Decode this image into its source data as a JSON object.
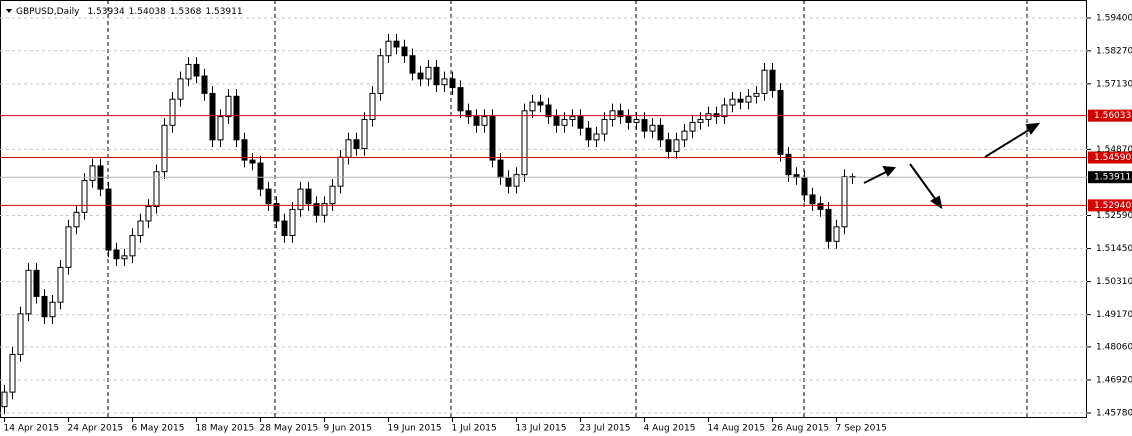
{
  "chart_data": {
    "type": "candlestick",
    "symbol": "GBPUSD,Daily",
    "quote": [
      1.53934,
      1.54038,
      1.5368,
      1.53911
    ],
    "categories": [
      "14 Apr 2015",
      null,
      null,
      null,
      null,
      null,
      null,
      null,
      "24 Apr 2015",
      null,
      null,
      null,
      null,
      null,
      null,
      null,
      "6 May 2015",
      null,
      null,
      null,
      null,
      null,
      null,
      null,
      "18 May 2015",
      null,
      null,
      null,
      null,
      null,
      null,
      null,
      "28 May 2015",
      null,
      null,
      null,
      null,
      null,
      null,
      null,
      "9 Jun 2015",
      null,
      null,
      null,
      null,
      null,
      null,
      null,
      "19 Jun 2015",
      null,
      null,
      null,
      null,
      null,
      null,
      null,
      "1 Jul 2015",
      null,
      null,
      null,
      null,
      null,
      null,
      null,
      "13 Jul 2015",
      null,
      null,
      null,
      null,
      null,
      null,
      null,
      "23 Jul 2015",
      null,
      null,
      null,
      null,
      null,
      null,
      null,
      "4 Aug 2015",
      null,
      null,
      null,
      null,
      null,
      null,
      null,
      "14 Aug 2015",
      null,
      null,
      null,
      null,
      null,
      null,
      null,
      "26 Aug 2015",
      null,
      null,
      null,
      null,
      null,
      null,
      null,
      "7 Sep 2015",
      null,
      null
    ],
    "open": [
      1.46,
      1.465,
      1.478,
      1.492,
      1.507,
      1.498,
      1.491,
      1.496,
      1.508,
      1.522,
      1.527,
      1.538,
      1.543,
      1.535,
      1.514,
      1.511,
      1.512,
      1.519,
      1.524,
      1.529,
      1.541,
      1.557,
      1.566,
      1.573,
      1.578,
      1.574,
      1.568,
      1.552,
      1.56,
      1.567,
      1.552,
      1.545,
      1.544,
      1.535,
      1.53,
      1.524,
      1.519,
      1.528,
      1.535,
      1.53,
      1.526,
      1.53,
      1.536,
      1.546,
      1.552,
      1.549,
      1.559,
      1.568,
      1.581,
      1.586,
      1.584,
      1.581,
      1.575,
      1.573,
      1.577,
      1.571,
      1.573,
      1.57,
      1.562,
      1.56,
      1.557,
      1.56,
      1.545,
      1.539,
      1.536,
      1.54,
      1.562,
      1.565,
      1.564,
      1.56,
      1.557,
      1.559,
      1.56,
      1.556,
      1.552,
      1.554,
      1.559,
      1.562,
      1.56,
      1.558,
      1.559,
      1.555,
      1.557,
      1.552,
      1.548,
      1.552,
      1.555,
      1.558,
      1.559,
      1.561,
      1.56,
      1.564,
      1.566,
      1.565,
      1.567,
      1.568,
      1.576,
      1.569,
      1.547,
      1.54,
      1.539,
      1.533,
      1.53,
      1.528,
      1.517,
      1.522,
      1.53934
    ],
    "high": [
      1.4675,
      1.4805,
      1.4945,
      1.5095,
      1.5095,
      1.5005,
      1.4985,
      1.5105,
      1.5245,
      1.5295,
      1.5405,
      1.5455,
      1.5455,
      1.5375,
      1.5165,
      1.5145,
      1.5215,
      1.5265,
      1.5315,
      1.5435,
      1.5595,
      1.5685,
      1.5755,
      1.5805,
      1.5805,
      1.5765,
      1.5705,
      1.5625,
      1.5695,
      1.5695,
      1.5545,
      1.5475,
      1.5465,
      1.5375,
      1.5325,
      1.5265,
      1.5305,
      1.5375,
      1.5375,
      1.5325,
      1.5325,
      1.5385,
      1.5485,
      1.5545,
      1.5545,
      1.5615,
      1.5705,
      1.5835,
      1.5885,
      1.5885,
      1.5865,
      1.5835,
      1.5775,
      1.5795,
      1.5795,
      1.5755,
      1.5755,
      1.5725,
      1.5645,
      1.5625,
      1.5625,
      1.5625,
      1.5475,
      1.5415,
      1.5425,
      1.5645,
      1.5675,
      1.5675,
      1.5665,
      1.5625,
      1.5615,
      1.5625,
      1.5625,
      1.5585,
      1.5565,
      1.5615,
      1.5645,
      1.5645,
      1.5625,
      1.5615,
      1.5615,
      1.5595,
      1.5595,
      1.5545,
      1.5545,
      1.5575,
      1.5605,
      1.5615,
      1.5635,
      1.5635,
      1.5665,
      1.5685,
      1.5685,
      1.5695,
      1.5705,
      1.5785,
      1.5785,
      1.5715,
      1.5495,
      1.5425,
      1.5415,
      1.5355,
      1.5325,
      1.5305,
      1.5245,
      1.5418,
      1.54038
    ],
    "low": [
      1.4575,
      1.4625,
      1.4755,
      1.4895,
      1.4955,
      1.4885,
      1.4885,
      1.4935,
      1.5055,
      1.5195,
      1.5245,
      1.5355,
      1.5325,
      1.5115,
      1.5085,
      1.5085,
      1.5095,
      1.5165,
      1.5215,
      1.5265,
      1.5385,
      1.5545,
      1.5635,
      1.5705,
      1.5715,
      1.5655,
      1.5495,
      1.5495,
      1.5575,
      1.5495,
      1.5425,
      1.5415,
      1.5325,
      1.5275,
      1.5215,
      1.5165,
      1.5165,
      1.5255,
      1.5275,
      1.5235,
      1.5235,
      1.5275,
      1.5335,
      1.5435,
      1.5465,
      1.5465,
      1.5565,
      1.5655,
      1.5785,
      1.5815,
      1.5785,
      1.5725,
      1.5705,
      1.5705,
      1.5685,
      1.5685,
      1.5675,
      1.5595,
      1.5575,
      1.5545,
      1.5545,
      1.5425,
      1.5365,
      1.5335,
      1.5335,
      1.5375,
      1.5595,
      1.5615,
      1.5575,
      1.5545,
      1.5545,
      1.5565,
      1.5535,
      1.5495,
      1.5495,
      1.5515,
      1.5565,
      1.5575,
      1.5555,
      1.5555,
      1.5525,
      1.5525,
      1.5495,
      1.5455,
      1.5455,
      1.5495,
      1.5525,
      1.5555,
      1.5565,
      1.5575,
      1.5575,
      1.5615,
      1.5625,
      1.5625,
      1.5645,
      1.5655,
      1.5665,
      1.5445,
      1.5375,
      1.5365,
      1.5305,
      1.5275,
      1.5255,
      1.5145,
      1.5145,
      1.5195,
      1.5368
    ],
    "close": [
      1.465,
      1.478,
      1.492,
      1.507,
      1.498,
      1.491,
      1.496,
      1.508,
      1.522,
      1.527,
      1.538,
      1.543,
      1.535,
      1.514,
      1.511,
      1.512,
      1.519,
      1.524,
      1.529,
      1.541,
      1.557,
      1.566,
      1.573,
      1.578,
      1.574,
      1.568,
      1.552,
      1.56,
      1.567,
      1.552,
      1.545,
      1.544,
      1.535,
      1.53,
      1.524,
      1.519,
      1.528,
      1.535,
      1.53,
      1.526,
      1.53,
      1.536,
      1.546,
      1.552,
      1.549,
      1.559,
      1.568,
      1.581,
      1.586,
      1.584,
      1.581,
      1.575,
      1.573,
      1.577,
      1.571,
      1.573,
      1.57,
      1.562,
      1.56,
      1.557,
      1.56,
      1.545,
      1.539,
      1.536,
      1.54,
      1.562,
      1.565,
      1.564,
      1.56,
      1.557,
      1.559,
      1.56,
      1.556,
      1.552,
      1.554,
      1.559,
      1.562,
      1.56,
      1.558,
      1.559,
      1.555,
      1.557,
      1.552,
      1.548,
      1.552,
      1.555,
      1.558,
      1.559,
      1.561,
      1.56,
      1.564,
      1.566,
      1.565,
      1.567,
      1.568,
      1.576,
      1.569,
      1.547,
      1.54,
      1.539,
      1.533,
      1.53,
      1.528,
      1.517,
      1.522,
      1.5393,
      1.53911
    ],
    "ylim": [
      1.45608,
      1.60021
    ],
    "yticks": [
      {
        "value": 1.594,
        "label": "1.59400"
      },
      {
        "value": 1.5827,
        "label": "1.58270"
      },
      {
        "value": 1.5713,
        "label": "1.57130"
      },
      {
        "value": 1.5487,
        "label": "1.54870"
      },
      {
        "value": 1.5259,
        "label": "1.52590"
      },
      {
        "value": 1.5145,
        "label": "1.51450"
      },
      {
        "value": 1.5031,
        "label": "1.50310"
      },
      {
        "value": 1.4917,
        "label": "1.49170"
      },
      {
        "value": 1.4806,
        "label": "1.48060"
      },
      {
        "value": 1.4692,
        "label": "1.46920"
      },
      {
        "value": 1.4578,
        "label": "1.45780"
      }
    ],
    "grid": true,
    "hlines": [
      {
        "value": 1.56033,
        "label": "1.56033",
        "color": "#d40000"
      },
      {
        "value": 1.5459,
        "label": "1.54590",
        "color": "#d40000"
      },
      {
        "value": 1.5294,
        "label": "1.52940",
        "color": "#d40000"
      },
      {
        "value": 1.53911,
        "label": "1.53911",
        "color": "#000000"
      }
    ]
  }
}
